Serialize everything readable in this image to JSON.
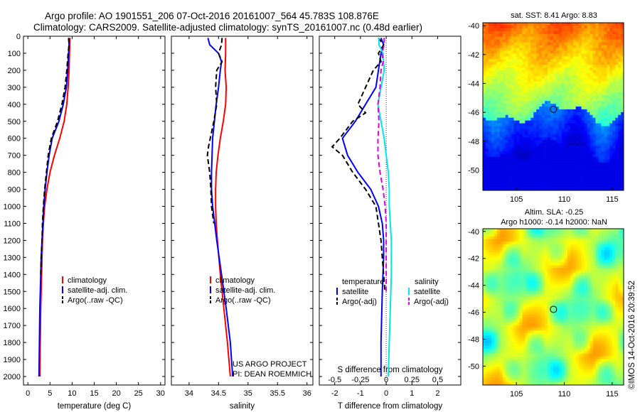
{
  "header": {
    "line1": "Argo profile: AO 1901551_206 07-Oct-2016 20161007_564 45.783S 108.876E",
    "line2": "Climatology: CARS2009. Satellite-adjusted climatology: synTS_20161007.nc (0.48d earlier)"
  },
  "chart_data": [
    {
      "type": "line",
      "xlabel": "temperature (deg C)",
      "ylabel": "",
      "xlim": [
        -1,
        31
      ],
      "ylim": [
        2050,
        0
      ],
      "xticks": [
        "0",
        "5",
        "10",
        "15",
        "20",
        "25",
        "30"
      ],
      "yticks": [
        "0",
        "100",
        "200",
        "300",
        "400",
        "500",
        "600",
        "700",
        "800",
        "900",
        "1000",
        "1100",
        "1200",
        "1300",
        "1400",
        "1500",
        "1600",
        "1700",
        "1800",
        "1900",
        "2000"
      ],
      "legend": [
        "climatology",
        "satellite-adj. clim.",
        "Argo(..raw -QC)"
      ],
      "legend_position": "lower-right",
      "series": [
        {
          "name": "climatology",
          "color": "#ff0000",
          "depth": [
            10,
            100,
            200,
            300,
            400,
            500,
            600,
            700,
            800,
            900,
            1000,
            1100,
            1200,
            1300,
            1400,
            1600,
            1800,
            2000
          ],
          "values": [
            9.5,
            9.4,
            9.3,
            9.1,
            8.8,
            8.2,
            7.2,
            6.0,
            5.0,
            4.3,
            3.8,
            3.5,
            3.3,
            3.2,
            3.1,
            2.9,
            2.8,
            2.7
          ]
        },
        {
          "name": "satellite-adj. clim.",
          "color": "#0000ff",
          "depth": [
            10,
            50,
            100,
            200,
            300,
            400,
            500,
            600,
            700,
            800,
            900,
            1000,
            1100,
            1200,
            1300,
            1400,
            1600,
            1800,
            2000
          ],
          "values": [
            9.3,
            9.3,
            9.2,
            9.0,
            8.7,
            8.0,
            7.0,
            5.5,
            4.8,
            4.3,
            3.9,
            3.6,
            3.4,
            3.2,
            3.0,
            2.9,
            2.7,
            2.6,
            2.5
          ]
        },
        {
          "name": "Argo(..raw -QC)",
          "color": "#000000",
          "dashed": true,
          "depth": [
            10,
            50,
            100,
            200,
            300,
            400,
            500,
            600,
            700,
            800,
            900,
            1000,
            1100,
            1200,
            1300,
            1400
          ],
          "values": [
            9.2,
            9.3,
            9.1,
            8.8,
            8.4,
            7.7,
            6.7,
            5.3,
            4.6,
            4.2,
            3.8,
            3.5,
            3.3,
            3.2,
            3.0,
            2.9
          ]
        }
      ],
      "annotations": []
    },
    {
      "type": "line",
      "xlabel": "salinity",
      "xlim": [
        33.7,
        36.1
      ],
      "ylim": [
        2050,
        0
      ],
      "xticks": [
        "34",
        "34.5",
        "35",
        "35.5",
        "36"
      ],
      "legend": [
        "climatology",
        "satellite-adj. clim.",
        "Argo(..raw -QC)"
      ],
      "legend_position": "lower-right",
      "series": [
        {
          "name": "climatology",
          "color": "#ff0000",
          "depth": [
            10,
            100,
            200,
            300,
            400,
            500,
            600,
            700,
            800,
            900,
            1000,
            1100,
            1200,
            1400,
            1600,
            1800,
            2000
          ],
          "values": [
            34.62,
            34.62,
            34.61,
            34.63,
            34.62,
            34.58,
            34.53,
            34.49,
            34.46,
            34.45,
            34.45,
            34.46,
            34.48,
            34.53,
            34.59,
            34.65,
            34.7
          ]
        },
        {
          "name": "satellite-adj. clim.",
          "color": "#0000ff",
          "depth": [
            10,
            50,
            100,
            150,
            200,
            300,
            400,
            500,
            600,
            700,
            800,
            900,
            1000,
            1200,
            1400,
            1600,
            1800,
            2000
          ],
          "values": [
            34.32,
            34.35,
            34.5,
            34.55,
            34.53,
            34.5,
            34.46,
            34.43,
            34.4,
            34.39,
            34.38,
            34.38,
            34.4,
            34.47,
            34.55,
            34.63,
            34.7,
            34.74
          ]
        },
        {
          "name": "Argo(..raw -QC)",
          "color": "#000000",
          "dashed": true,
          "depth": [
            10,
            50,
            100,
            150,
            200,
            300,
            400,
            500,
            600,
            650,
            700,
            800,
            900,
            1000,
            1100
          ],
          "values": [
            34.56,
            34.55,
            34.5,
            34.56,
            34.47,
            34.45,
            34.47,
            34.42,
            34.36,
            34.33,
            34.31,
            34.35,
            34.37,
            34.38,
            34.42
          ]
        }
      ],
      "annotations": [
        "US ARGO PROJECT",
        "PI: DEAN ROEMMICH"
      ]
    },
    {
      "type": "line",
      "xlabel": "T difference from climatology",
      "top_axis_label": "S difference from climatology",
      "xlim": [
        -2.6,
        2.9
      ],
      "top_xlim": [
        -0.65,
        0.725
      ],
      "ylim": [
        2050,
        0
      ],
      "xticks": [
        "-2",
        "-1",
        "0",
        "1",
        "2"
      ],
      "top_xticks": [
        "-0.5",
        "-0.25",
        "0",
        "0.25",
        "0.5"
      ],
      "legend_temperature_title": "temperature",
      "legend_salinity_title": "salinity",
      "legend": [
        "satellite",
        "Argo(-adj)",
        "satellite",
        "Argo(-adj)"
      ],
      "series": [
        {
          "name": "satellite",
          "group": "temperature",
          "color": "#0000ff",
          "depth": [
            10,
            50,
            100,
            200,
            300,
            400,
            500,
            600,
            700,
            800,
            900,
            1000,
            1100,
            1200,
            1300,
            1500,
            1800,
            2000
          ],
          "values": [
            -0.2,
            -0.1,
            -0.2,
            -0.3,
            -0.4,
            -0.8,
            -1.2,
            -1.7,
            -1.5,
            -1.1,
            -0.6,
            -0.3,
            -0.15,
            -0.1,
            -0.1,
            -0.15,
            -0.2,
            -0.2
          ]
        },
        {
          "name": "Argo(-adj)",
          "group": "temperature",
          "color": "#000000",
          "dashed": true,
          "depth": [
            10,
            50,
            100,
            150,
            200,
            300,
            400,
            450,
            500,
            600,
            650,
            700,
            800,
            900,
            1000,
            1100,
            1200,
            1300,
            1400,
            1500
          ],
          "values": [
            -0.3,
            -0.1,
            -0.3,
            -0.2,
            -0.5,
            -0.8,
            -1.1,
            -0.8,
            -1.3,
            -1.8,
            -2.1,
            -1.7,
            -1.3,
            -0.8,
            -0.4,
            -0.3,
            -0.2,
            -0.15,
            -0.1,
            -0.05
          ]
        },
        {
          "name": "satellite",
          "group": "salinity",
          "color": "#00e5ee",
          "depth": [
            10,
            50,
            100,
            200,
            300,
            400,
            500,
            600,
            700,
            800,
            900,
            1000,
            1200,
            1400,
            1600,
            1800,
            2000
          ],
          "values": [
            -0.07,
            -0.07,
            -0.03,
            -0.02,
            -0.05,
            -0.08,
            -0.05,
            -0.02,
            0.0,
            0.02,
            0.03,
            0.03,
            0.05,
            0.05,
            0.04,
            0.03,
            0.02
          ]
        },
        {
          "name": "Argo(-adj)",
          "group": "salinity",
          "color": "#e000e0",
          "dashed": true,
          "depth": [
            10,
            50,
            100,
            150,
            200,
            300,
            400,
            500,
            600,
            700,
            800,
            900,
            1000,
            1100,
            1200,
            1300,
            1400,
            1500
          ],
          "values": [
            -0.02,
            -0.02,
            -0.04,
            -0.03,
            -0.05,
            -0.06,
            -0.08,
            -0.07,
            -0.08,
            -0.08,
            -0.06,
            -0.03,
            -0.01,
            0.0,
            0.0,
            0.0,
            0.0,
            0.0
          ]
        }
      ]
    }
  ],
  "maps": [
    {
      "title": "sat. SST: 8.41  Argo: 8.83",
      "xticks": [
        "105",
        "110",
        "115"
      ],
      "yticks": [
        "-40",
        "-42",
        "-44",
        "-46",
        "-48",
        "-50"
      ],
      "xlim": [
        101.5,
        116.2
      ],
      "ylim": [
        -39.8,
        -51.4
      ],
      "marker": {
        "lon": 108.876,
        "lat": -45.783
      }
    },
    {
      "title_line1": "Altim. SLA: -0.25",
      "title_line2": "Argo h1000: -0.14  h2000: NaN",
      "xticks": [
        "105",
        "110",
        "115"
      ],
      "yticks": [
        "-40",
        "-42",
        "-44",
        "-46",
        "-48",
        "-50"
      ],
      "xlim": [
        101.5,
        116.2
      ],
      "ylim": [
        -39.8,
        -51.4
      ],
      "marker": {
        "lon": 108.876,
        "lat": -45.783
      }
    }
  ],
  "watermark": "©IMOS 14-Oct-2016 20:39:52"
}
